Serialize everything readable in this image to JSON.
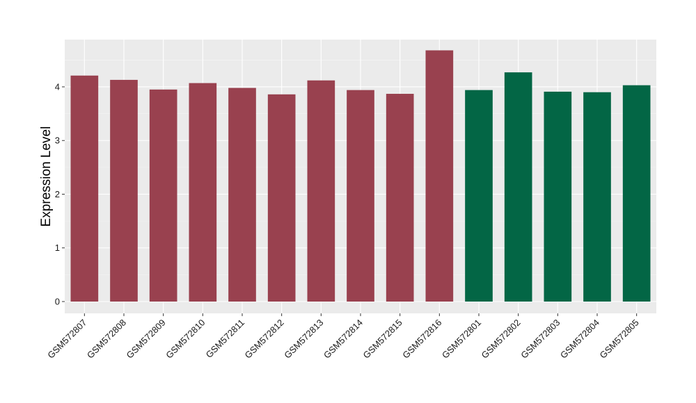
{
  "chart_data": {
    "type": "bar",
    "ylabel": "Expression Level",
    "xlabel": "",
    "ylim": [
      -0.22,
      4.88
    ],
    "yticks": [
      0,
      1,
      2,
      3,
      4
    ],
    "grid": true,
    "background": "#ebebeb",
    "categories": [
      "GSM572807",
      "GSM572808",
      "GSM572809",
      "GSM572810",
      "GSM572811",
      "GSM572812",
      "GSM572813",
      "GSM572814",
      "GSM572815",
      "GSM572816",
      "GSM572801",
      "GSM572802",
      "GSM572803",
      "GSM572804",
      "GSM572805"
    ],
    "values": [
      4.21,
      4.13,
      3.95,
      4.07,
      3.98,
      3.86,
      4.12,
      3.94,
      3.87,
      4.68,
      3.94,
      4.27,
      3.91,
      3.9,
      4.03
    ],
    "colors": [
      "#99414f",
      "#99414f",
      "#99414f",
      "#99414f",
      "#99414f",
      "#99414f",
      "#99414f",
      "#99414f",
      "#99414f",
      "#99414f",
      "#036645",
      "#036645",
      "#036645",
      "#036645",
      "#036645"
    ]
  }
}
